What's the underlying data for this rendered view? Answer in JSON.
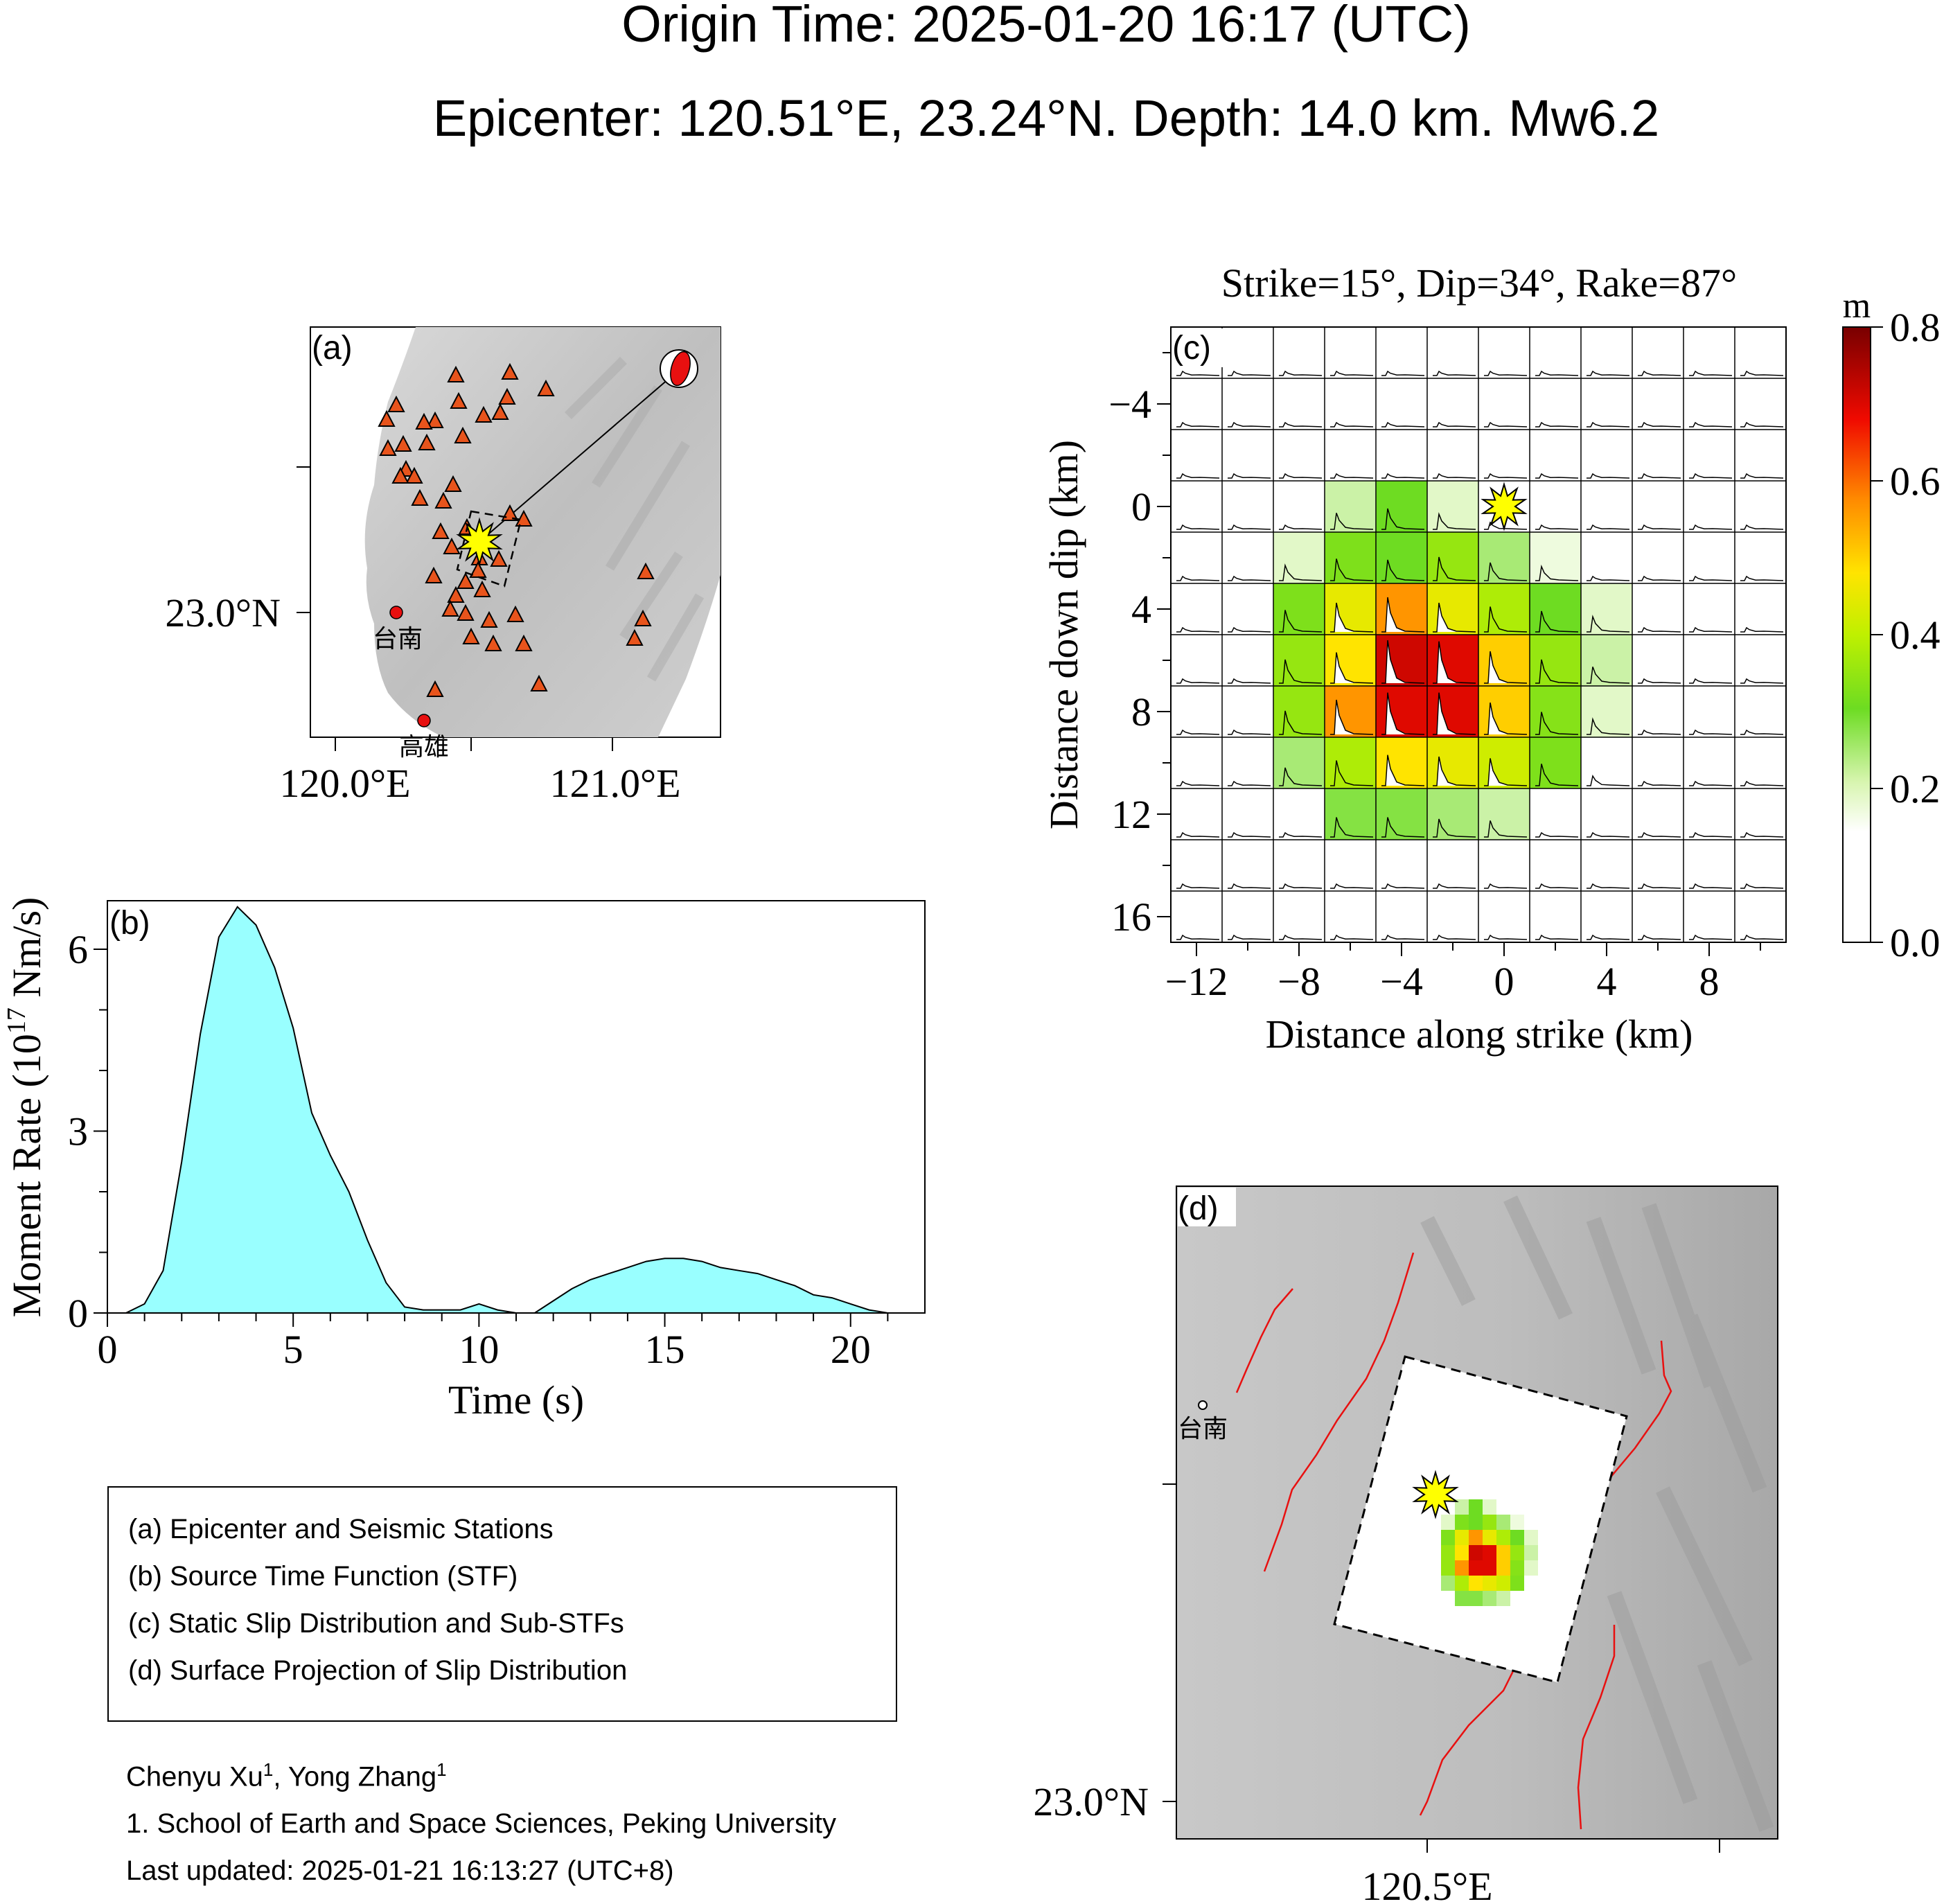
{
  "header": {
    "origin_time": "Origin Time: 2025-01-20 16:17 (UTC)",
    "epicenter": "Epicenter: 120.51°E, 23.24°N. Depth: 14.0 km. Mw6.2"
  },
  "panel_a": {
    "label": "(a)",
    "lat_label": "23.0°N",
    "lon_labels": [
      "120.0°E",
      "121.0°E"
    ],
    "cities": [
      "台南",
      "高雄"
    ]
  },
  "chart_data": [
    {
      "type": "area",
      "panel": "(b)",
      "title": "",
      "xlabel": "Time (s)",
      "ylabel": "Moment Rate (10^17 Nm/s)",
      "xlim": [
        0,
        22
      ],
      "ylim": [
        0,
        6.8
      ],
      "xticks": [
        0,
        5,
        10,
        15,
        20
      ],
      "yticks": [
        0,
        3,
        6
      ],
      "color": "#99ffff",
      "x": [
        0.5,
        1.0,
        1.5,
        2.0,
        2.5,
        3.0,
        3.5,
        4.0,
        4.5,
        5.0,
        5.5,
        6.0,
        6.5,
        7.0,
        7.5,
        8.0,
        8.5,
        9.0,
        9.5,
        10.0,
        10.5,
        11.0,
        11.5,
        12.0,
        12.5,
        13.0,
        13.5,
        14.0,
        14.5,
        15.0,
        15.5,
        16.0,
        16.5,
        17.0,
        17.5,
        18.0,
        18.5,
        19.0,
        19.5,
        20.0,
        20.5,
        21.0
      ],
      "y": [
        0.0,
        0.15,
        0.7,
        2.5,
        4.6,
        6.2,
        6.7,
        6.4,
        5.7,
        4.7,
        3.3,
        2.6,
        2.0,
        1.2,
        0.5,
        0.1,
        0.05,
        0.05,
        0.05,
        0.15,
        0.05,
        0.0,
        0.0,
        0.2,
        0.4,
        0.55,
        0.65,
        0.75,
        0.85,
        0.9,
        0.9,
        0.85,
        0.75,
        0.7,
        0.65,
        0.55,
        0.45,
        0.3,
        0.25,
        0.15,
        0.05,
        0.0
      ]
    },
    {
      "type": "heatmap",
      "panel": "(c)",
      "title": "Strike=15°, Dip=34°, Rake=87°",
      "xlabel": "Distance along strike (km)",
      "ylabel": "Distance down dip (km)",
      "xlim": [
        -13,
        11
      ],
      "ylim": [
        17,
        -7
      ],
      "xticks": [
        -12,
        -8,
        -4,
        0,
        4,
        8
      ],
      "yticks": [
        -4,
        0,
        4,
        8,
        12,
        16
      ],
      "x_centers": [
        -12,
        -10,
        -8,
        -6,
        -4,
        -2,
        0,
        2,
        4,
        6,
        8,
        10
      ],
      "y_centers": [
        -6,
        -4,
        -2,
        0,
        2,
        4,
        6,
        8,
        10,
        12,
        14,
        16
      ],
      "slip_m": [
        [
          0,
          0,
          0,
          0,
          0,
          0,
          0,
          0,
          0,
          0,
          0,
          0
        ],
        [
          0,
          0,
          0,
          0,
          0,
          0,
          0,
          0,
          0,
          0,
          0,
          0
        ],
        [
          0,
          0,
          0,
          0,
          0,
          0,
          0,
          0,
          0,
          0,
          0,
          0
        ],
        [
          0,
          0,
          0,
          0.22,
          0.3,
          0.2,
          0.05,
          0,
          0,
          0,
          0,
          0
        ],
        [
          0,
          0,
          0.2,
          0.32,
          0.3,
          0.35,
          0.25,
          0.18,
          0,
          0,
          0,
          0
        ],
        [
          0,
          0,
          0.32,
          0.45,
          0.55,
          0.45,
          0.38,
          0.3,
          0.2,
          0,
          0,
          0
        ],
        [
          0,
          0,
          0.35,
          0.48,
          0.7,
          0.68,
          0.5,
          0.35,
          0.22,
          0,
          0,
          0
        ],
        [
          0,
          0,
          0.35,
          0.55,
          0.68,
          0.68,
          0.5,
          0.33,
          0.2,
          0,
          0,
          0
        ],
        [
          0,
          0,
          0.25,
          0.38,
          0.48,
          0.45,
          0.42,
          0.32,
          0.1,
          0,
          0,
          0
        ],
        [
          0,
          0,
          0,
          0.28,
          0.28,
          0.25,
          0.22,
          0,
          0,
          0,
          0,
          0
        ],
        [
          0,
          0,
          0,
          0,
          0,
          0,
          0,
          0,
          0,
          0,
          0,
          0
        ],
        [
          0,
          0,
          0,
          0,
          0,
          0,
          0,
          0,
          0,
          0,
          0,
          0
        ]
      ],
      "colorbar": {
        "label": "m",
        "min": 0.0,
        "max": 0.8,
        "ticks": [
          "0.0",
          "0.2",
          "0.4",
          "0.6",
          "0.8"
        ]
      },
      "hypocenter": [
        0,
        0
      ]
    }
  ],
  "panel_d": {
    "label": "(d)",
    "lat_label": "23.0°N",
    "lon_label": "120.5°E",
    "city": "台南"
  },
  "legend": {
    "items": [
      "(a) Epicenter and Seismic Stations",
      "(b) Source Time Function (STF)",
      "(c) Static Slip Distribution and Sub-STFs",
      "(d) Surface Projection of Slip Distribution"
    ]
  },
  "credits": {
    "authors_prefix": "Chenyu Xu",
    "author_sup_1": "1",
    "authors_mid": ", Yong Zhang",
    "author_sup_2": "1",
    "affiliation": "1. School of Earth and Space Sciences, Peking University",
    "updated": "Last updated: 2025-01-21 16:13:27 (UTC+8)"
  },
  "colors": {
    "stf_fill": "#99ffff",
    "station": "#e8541c",
    "epicenter_star": "#ffff00",
    "fault_line": "#e81010",
    "city_dot": "#e81010"
  }
}
